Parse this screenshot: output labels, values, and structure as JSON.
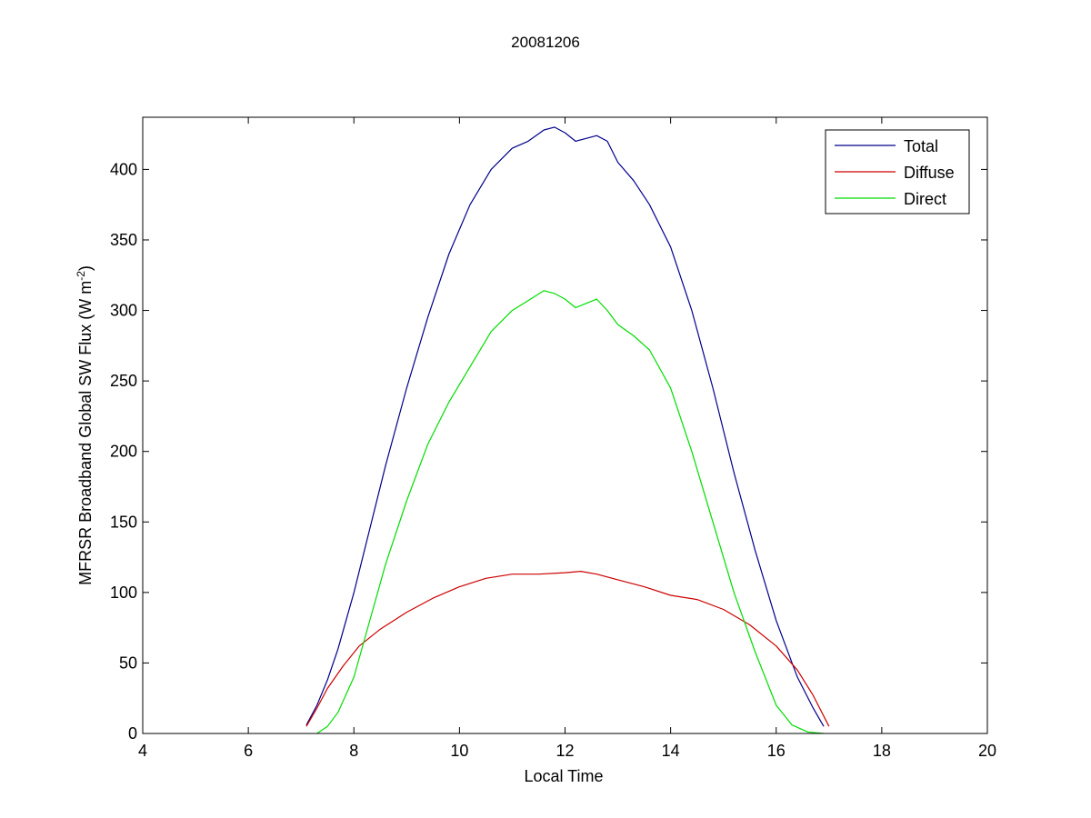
{
  "chart_data": {
    "type": "line",
    "title": "20081206",
    "xlabel": "Local Time",
    "ylabel_main": "MFRSR Broadband Global SW Flux (W m",
    "ylabel_sup": "-2",
    "ylabel_close": ")",
    "xlim": [
      4,
      20
    ],
    "ylim": [
      0,
      437
    ],
    "xticks": [
      4,
      6,
      8,
      10,
      12,
      14,
      16,
      18,
      20
    ],
    "yticks": [
      0,
      50,
      100,
      150,
      200,
      250,
      300,
      350,
      400
    ],
    "legend_position": "top-right",
    "grid": false,
    "series": [
      {
        "name": "Total",
        "color": "#00008b",
        "x": [
          7.1,
          7.3,
          7.5,
          7.7,
          8.0,
          8.3,
          8.6,
          9.0,
          9.4,
          9.8,
          10.2,
          10.6,
          11.0,
          11.3,
          11.6,
          11.8,
          12.0,
          12.2,
          12.4,
          12.6,
          12.8,
          13.0,
          13.3,
          13.6,
          14.0,
          14.4,
          14.8,
          15.2,
          15.6,
          16.0,
          16.4,
          16.7,
          16.9
        ],
        "y": [
          6,
          20,
          38,
          60,
          100,
          145,
          190,
          245,
          295,
          340,
          375,
          400,
          415,
          420,
          428,
          430,
          426,
          420,
          422,
          424,
          420,
          405,
          392,
          375,
          345,
          300,
          245,
          185,
          130,
          80,
          40,
          18,
          5
        ]
      },
      {
        "name": "Diffuse",
        "color": "#cc0000",
        "x": [
          7.1,
          7.3,
          7.5,
          7.8,
          8.1,
          8.5,
          9.0,
          9.5,
          10.0,
          10.5,
          11.0,
          11.5,
          12.0,
          12.3,
          12.6,
          13.0,
          13.5,
          14.0,
          14.5,
          15.0,
          15.5,
          16.0,
          16.4,
          16.7,
          17.0
        ],
        "y": [
          5,
          18,
          32,
          48,
          62,
          74,
          86,
          96,
          104,
          110,
          113,
          113,
          114,
          115,
          113,
          109,
          104,
          98,
          95,
          88,
          77,
          62,
          45,
          27,
          5
        ]
      },
      {
        "name": "Direct",
        "color": "#00dd00",
        "x": [
          7.3,
          7.5,
          7.7,
          8.0,
          8.3,
          8.6,
          9.0,
          9.4,
          9.8,
          10.2,
          10.6,
          11.0,
          11.3,
          11.6,
          11.8,
          12.0,
          12.2,
          12.4,
          12.6,
          12.8,
          13.0,
          13.3,
          13.6,
          14.0,
          14.4,
          14.8,
          15.2,
          15.6,
          16.0,
          16.3,
          16.6,
          16.9
        ],
        "y": [
          0,
          5,
          15,
          40,
          80,
          120,
          165,
          205,
          235,
          260,
          285,
          300,
          307,
          314,
          312,
          308,
          302,
          305,
          308,
          300,
          290,
          282,
          272,
          245,
          200,
          150,
          100,
          58,
          20,
          6,
          1,
          0
        ]
      }
    ]
  }
}
